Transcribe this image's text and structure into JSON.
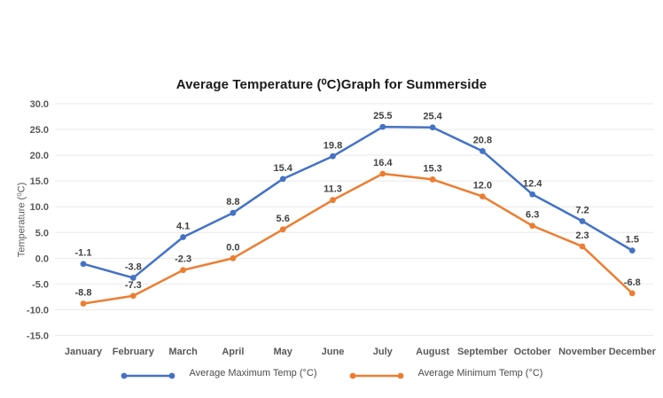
{
  "chart_data": {
    "type": "line",
    "title": "Average Temperature (⁰C)Graph for Summerside",
    "ylabel": "Temperature (⁰C)",
    "categories": [
      "January",
      "February",
      "March",
      "April",
      "May",
      "June",
      "July",
      "August",
      "September",
      "October",
      "November",
      "December"
    ],
    "series": [
      {
        "name": "Average Maximum Temp (°C)",
        "color": "#4472C4",
        "values": [
          -1.1,
          -3.8,
          4.1,
          8.8,
          15.4,
          19.8,
          25.5,
          25.4,
          20.8,
          12.4,
          7.2,
          1.5
        ]
      },
      {
        "name": "Average Minimum Temp (°C)",
        "color": "#ED7D31",
        "values": [
          -8.8,
          -7.3,
          -2.3,
          0.0,
          5.6,
          11.3,
          16.4,
          15.3,
          12.0,
          6.3,
          2.3,
          -6.8
        ]
      }
    ],
    "ylim": [
      -15,
      30
    ],
    "ytick_step": 5,
    "grid": "horizontal",
    "legend_position": "bottom",
    "data_labels": "above-points"
  },
  "colors": {
    "gridline": "#e9e9e9",
    "axis_text": "#595959",
    "data_label": "#404040",
    "title_text": "#1a1a1a",
    "legend_text": "#4a4a4a"
  }
}
